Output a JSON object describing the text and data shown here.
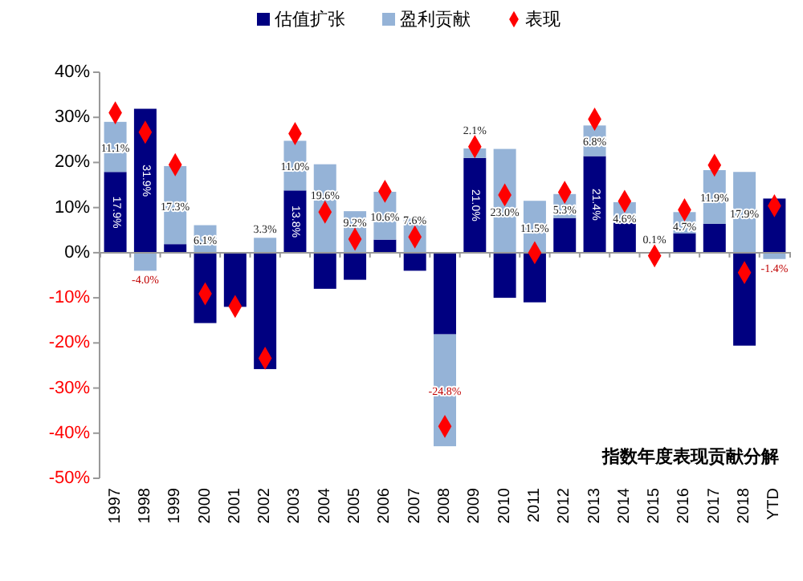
{
  "chart_data": {
    "type": "bar",
    "stacked": true,
    "title": "指数年度表现贡献分解",
    "categories": [
      "1997",
      "1998",
      "1999",
      "2000",
      "2001",
      "2002",
      "2003",
      "2004",
      "2005",
      "2006",
      "2007",
      "2008",
      "2009",
      "2010",
      "2011",
      "2012",
      "2013",
      "2014",
      "2015",
      "2016",
      "2017",
      "2018",
      "YTD"
    ],
    "series": [
      {
        "name": "估值扩张",
        "color": "#000080",
        "values": [
          17.9,
          31.9,
          1.9,
          -15.6,
          -12.0,
          -25.8,
          13.8,
          -8.0,
          -6.0,
          2.9,
          -4.0,
          -18.1,
          21.0,
          -10.0,
          -11.0,
          7.7,
          21.4,
          6.6,
          null,
          4.3,
          6.4,
          -20.6,
          12.0
        ],
        "value_labels": [
          "17.9%",
          "31.9%",
          null,
          null,
          null,
          null,
          "13.8%",
          null,
          null,
          null,
          null,
          null,
          "21.0%",
          null,
          null,
          null,
          "21.4%",
          null,
          null,
          null,
          null,
          null,
          null
        ]
      },
      {
        "name": "盈利贡献",
        "color": "#95b3d7",
        "values": [
          11.1,
          -4.0,
          17.3,
          6.1,
          null,
          3.3,
          11.0,
          19.6,
          9.2,
          10.6,
          7.6,
          -24.8,
          2.1,
          23.0,
          11.5,
          5.3,
          6.8,
          4.6,
          0.1,
          4.7,
          11.9,
          17.9,
          -1.4
        ],
        "value_labels": [
          "11.1%",
          "-4.0%",
          "17.3%",
          "6.1%",
          null,
          "3.3%",
          "11.0%",
          "19.6%",
          "9.2%",
          "10.6%",
          "7.6%",
          "-24.8%",
          "2.1%",
          "23.0%",
          "11.5%",
          "5.3%",
          "6.8%",
          "4.6%",
          "0.1%",
          "4.7%",
          "11.9%",
          "17.9%",
          "-1.4%"
        ]
      },
      {
        "name": "表现",
        "type": "scatter",
        "marker": "diamond",
        "color": "#ff0000",
        "values": [
          31.0,
          26.7,
          19.5,
          -9.1,
          -11.9,
          -23.4,
          26.4,
          9.0,
          3.0,
          13.6,
          3.5,
          -38.5,
          23.5,
          12.8,
          0.0,
          13.4,
          29.6,
          11.4,
          -0.7,
          9.5,
          19.4,
          -4.4,
          10.4
        ]
      }
    ],
    "ylim": [
      -50,
      40
    ],
    "yticks": [
      {
        "value": -50,
        "label": "-50%"
      },
      {
        "value": -40,
        "label": "-40%"
      },
      {
        "value": -30,
        "label": "-30%"
      },
      {
        "value": -20,
        "label": "-20%"
      },
      {
        "value": -10,
        "label": "-10%"
      },
      {
        "value": 0,
        "label": "0%"
      },
      {
        "value": 10,
        "label": "10%"
      },
      {
        "value": 20,
        "label": "20%"
      },
      {
        "value": 30,
        "label": "30%"
      },
      {
        "value": 40,
        "label": "40%"
      }
    ],
    "grid": false,
    "legend": "top"
  }
}
